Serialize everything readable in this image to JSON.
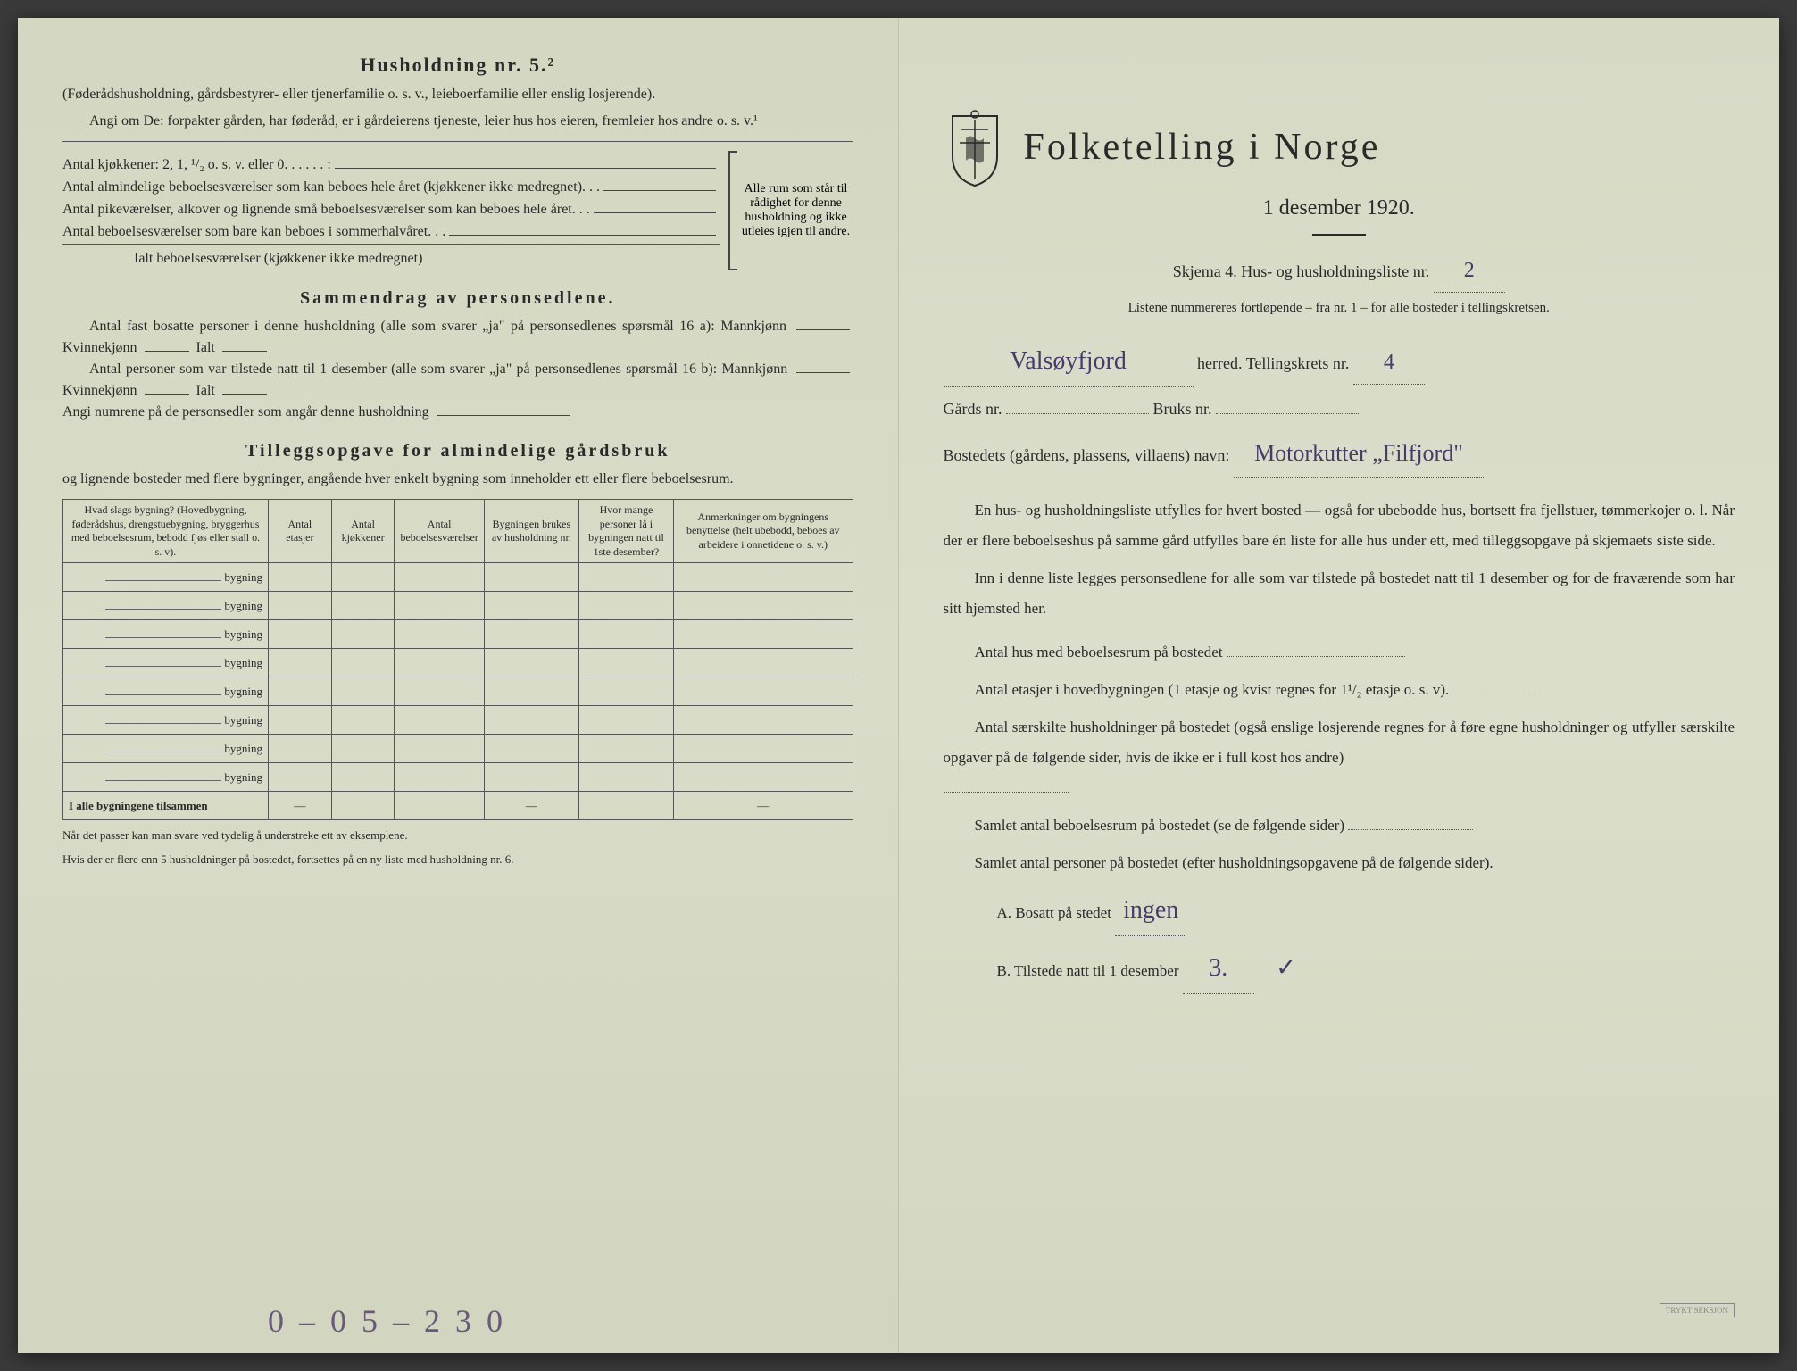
{
  "leftPage": {
    "heading": "Husholdning nr. 5.²",
    "intro1": "(Føderådshusholdning, gårdsbestyrer- eller tjenerfamilie o. s. v., leieboerfamilie eller enslig losjerende).",
    "intro2": "Angi om De:  forpakter gården, har føderåd, er i gårdeierens tjeneste, leier hus hos eieren, fremleier hos andre o. s. v.¹",
    "rooms": {
      "line1": "Antal kjøkkener: 2, 1, ¹/₂ o. s. v. eller 0",
      "line2": "Antal almindelige beboelsesværelser som kan beboes hele året (kjøkkener ikke medregnet)",
      "line3": "Antal pikeværelser, alkover og lignende små beboelsesværelser som kan beboes hele året",
      "line4": "Antal beboelsesværelser som bare kan beboes i sommerhalvåret",
      "lineTotal": "Ialt beboelsesværelser (kjøkkener ikke medregnet)",
      "bracketText": "Alle rum som står til rådighet for denne husholdning og ikke utleies igjen til andre."
    },
    "summary": {
      "title": "Sammendrag av personsedlene.",
      "line1a": "Antal fast bosatte personer i denne husholdning (alle som svarer „ja\" på personsedlenes spørsmål 16 a): Mannkjønn",
      "line1b": "Kvinnekjønn",
      "line1c": "Ialt",
      "line2a": "Antal personer som var tilstede natt til 1 desember (alle som svarer „ja\" på personsedlenes spørsmål 16 b): Mannkjønn",
      "line2b": "Kvinnekjønn",
      "line2c": "Ialt",
      "line3": "Angi numrene på de personsedler som angår denne husholdning"
    },
    "supplement": {
      "title": "Tilleggsopgave for almindelige gårdsbruk",
      "subtitle": "og lignende bosteder med flere bygninger, angående hver enkelt bygning som inneholder ett eller flere beboelsesrum."
    },
    "table": {
      "headers": [
        "Hvad slags bygning?\n(Hovedbygning, føderådshus, drengstuebygning, bryggerhus med beboelsesrum, bebodd fjøs eller stall o. s. v).",
        "Antal etasjer",
        "Antal kjøkkener",
        "Antal beboelsesværelser",
        "Bygningen brukes av husholdning nr.",
        "Hvor mange personer lå i bygningen natt til 1ste desember?",
        "Anmerkninger om bygningens benyttelse (helt ubebodd, beboes av arbeidere i onnetidene o. s. v.)"
      ],
      "buildingLabel": "bygning",
      "rowCount": 8,
      "totalLabel": "I alle bygningene tilsammen",
      "dash": "—"
    },
    "footnotes": {
      "f1": "Når det passer kan man svare ved tydelig å understreke ett av eksemplene.",
      "f2": "Hvis der er flere enn 5 husholdninger på bostedet, fortsettes på en ny liste med husholdning nr. 6."
    },
    "pencilBottom": "0 – 0  5 – 2  3 0"
  },
  "rightPage": {
    "mainTitle": "Folketelling i Norge",
    "subtitle": "1 desember 1920.",
    "formLine": "Skjema 4.  Hus- og husholdningsliste nr.",
    "formNr": "2",
    "listNote": "Listene nummereres fortløpende – fra nr. 1 – for alle bosteder i tellingskretsen.",
    "herred": "Valsøyfjord",
    "herredLabel": "herred.   Tellingskrets nr.",
    "tellingskretsNr": "4",
    "gardsLabel": "Gårds nr.",
    "bruksLabel": "Bruks nr.",
    "bostedLabel": "Bostedets (gårdens, plassens, villaens) navn:",
    "bostedValue": "Motorkutter „Filfjord\"",
    "para1": "En hus- og husholdningsliste utfylles for hvert bosted — også for ubebodde hus, bortsett fra fjellstuer, tømmerkojer o. l.  Når der er flere beboelseshus på samme gård utfylles bare én liste for alle hus under ett, med tilleggsopgave på skjemaets siste side.",
    "para2": "Inn i denne liste legges personsedlene for alle som var tilstede på bostedet natt til 1 desember og for de fraværende som har sitt hjemsted her.",
    "q1": "Antal hus med beboelsesrum på bostedet",
    "q2": "Antal etasjer i hovedbygningen (1 etasje og kvist regnes for 1¹/₂ etasje o. s. v).",
    "q3": "Antal særskilte husholdninger på bostedet (også enslige losjerende regnes for å føre egne husholdninger og utfyller særskilte opgaver på de følgende sider, hvis de ikke er i full kost hos andre)",
    "q4": "Samlet antal beboelsesrum på bostedet (se de følgende sider)",
    "q5": "Samlet antal personer på bostedet (efter husholdningsopgavene på de følgende sider).",
    "qA": "A.  Bosatt på stedet",
    "qAval": "ingen",
    "qB": "B.  Tilstede natt til 1 desember",
    "qBval": "3."
  },
  "colors": {
    "paper": "#d8dcc8",
    "ink": "#2a2a2a",
    "handwriting": "#4a3a6a",
    "pencil": "#6a5a7a"
  }
}
